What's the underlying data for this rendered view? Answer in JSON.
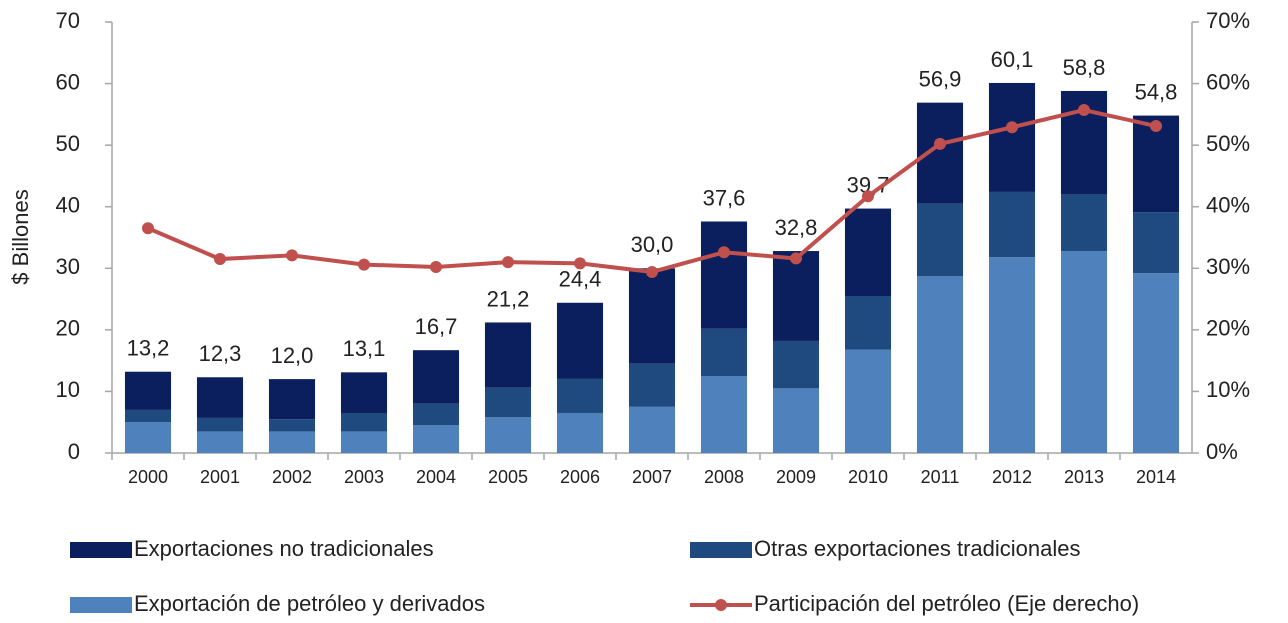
{
  "chart_data": {
    "type": "bar",
    "ylabel": "$ Billones",
    "categories": [
      "2000",
      "2001",
      "2002",
      "2003",
      "2004",
      "2005",
      "2006",
      "2007",
      "2008",
      "2009",
      "2010",
      "2011",
      "2012",
      "2013",
      "2014"
    ],
    "series": [
      {
        "name": "Exportaciones no tradicionales",
        "color": "#0b1f5e",
        "type": "bar",
        "values": [
          6.2,
          6.6,
          6.5,
          6.6,
          8.7,
          10.6,
          12.3,
          15.5,
          17.4,
          14.6,
          14.2,
          16.4,
          17.7,
          16.8,
          15.7
        ]
      },
      {
        "name": "Otras exportaciones tradicionales",
        "color": "#1f4a80",
        "type": "bar",
        "values": [
          2.0,
          2.2,
          2.0,
          3.0,
          3.5,
          4.8,
          5.6,
          7.0,
          7.7,
          7.7,
          8.7,
          11.8,
          10.6,
          9.2,
          9.9
        ]
      },
      {
        "name": "Exportación de petróleo y derivados",
        "color": "#4f81bd",
        "type": "bar",
        "values": [
          5.0,
          3.5,
          3.5,
          3.5,
          4.5,
          5.8,
          6.5,
          7.5,
          12.5,
          10.5,
          16.8,
          28.7,
          31.8,
          32.8,
          29.2
        ]
      },
      {
        "name": "Participación del petróleo (Eje derecho)",
        "color": "#c0504d",
        "type": "line",
        "axis": "y2",
        "values": [
          36.5,
          31.5,
          32.1,
          30.6,
          30.2,
          31.0,
          30.8,
          29.4,
          32.6,
          31.6,
          41.7,
          50.2,
          52.9,
          55.7,
          53.1
        ]
      }
    ],
    "totals": {
      "values": [
        13.2,
        12.3,
        12.0,
        13.1,
        16.7,
        21.2,
        24.4,
        30.0,
        37.6,
        32.8,
        39.7,
        56.9,
        60.1,
        58.8,
        54.8
      ],
      "value_labels": [
        "13,2",
        "12,3",
        "12,0",
        "13,1",
        "16,7",
        "21,2",
        "24,4",
        "30,0",
        "37,6",
        "32,8",
        "39,7",
        "56,9",
        "60,1",
        "58,8",
        "54,8"
      ]
    },
    "ylim": [
      0,
      70
    ],
    "yticks": [
      0,
      10,
      20,
      30,
      40,
      50,
      60,
      70
    ],
    "y2lim": [
      0,
      70
    ],
    "y2ticks": [
      {
        "value": 0,
        "label": "0%"
      },
      {
        "value": 10,
        "label": "10%"
      },
      {
        "value": 20,
        "label": "20%"
      },
      {
        "value": 30,
        "label": "30%"
      },
      {
        "value": 40,
        "label": "40%"
      },
      {
        "value": 50,
        "label": "50%"
      },
      {
        "value": 60,
        "label": "60%"
      },
      {
        "value": 70,
        "label": "70%"
      }
    ],
    "stacked": true,
    "grid": false
  }
}
